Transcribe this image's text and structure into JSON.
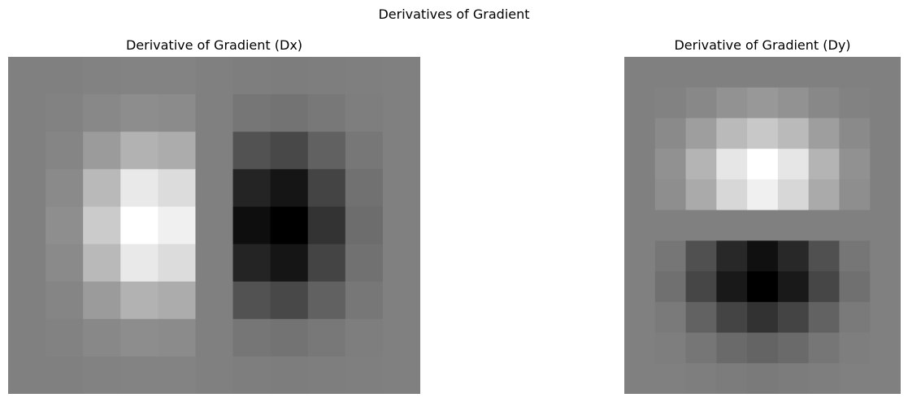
{
  "figure": {
    "title": "Derivatives of Gradient"
  },
  "chart_data": [
    {
      "type": "heatmap",
      "title": "Derivative of Gradient (Dx)",
      "colormap": "gray",
      "axes_visible": false,
      "grid": false,
      "rows": 9,
      "cols": 11,
      "value_range": [
        0,
        255
      ],
      "values": [
        [
          128,
          128,
          130,
          131,
          131,
          128,
          126,
          125,
          126,
          127,
          128
        ],
        [
          128,
          130,
          136,
          141,
          139,
          128,
          118,
          115,
          120,
          126,
          128
        ],
        [
          128,
          133,
          155,
          178,
          172,
          128,
          82,
          72,
          97,
          119,
          128
        ],
        [
          128,
          138,
          185,
          233,
          220,
          128,
          36,
          21,
          68,
          113,
          128
        ],
        [
          128,
          142,
          203,
          255,
          240,
          128,
          14,
          0,
          51,
          109,
          128
        ],
        [
          128,
          138,
          185,
          233,
          220,
          128,
          36,
          21,
          68,
          113,
          128
        ],
        [
          128,
          133,
          155,
          178,
          172,
          128,
          82,
          72,
          97,
          119,
          128
        ],
        [
          128,
          130,
          136,
          141,
          139,
          128,
          118,
          115,
          120,
          126,
          128
        ],
        [
          128,
          128,
          130,
          131,
          131,
          128,
          126,
          125,
          126,
          127,
          128
        ]
      ]
    },
    {
      "type": "heatmap",
      "title": "Derivative of Gradient (Dy)",
      "colormap": "gray",
      "axes_visible": false,
      "grid": false,
      "rows": 11,
      "cols": 9,
      "value_range": [
        0,
        255
      ],
      "values": [
        [
          128,
          128,
          128,
          128,
          128,
          128,
          128,
          128,
          128
        ],
        [
          128,
          130,
          136,
          146,
          152,
          146,
          136,
          130,
          128
        ],
        [
          128,
          138,
          158,
          186,
          200,
          186,
          158,
          138,
          128
        ],
        [
          128,
          145,
          180,
          230,
          255,
          230,
          180,
          145,
          128
        ],
        [
          128,
          142,
          170,
          215,
          240,
          215,
          170,
          142,
          128
        ],
        [
          128,
          128,
          128,
          128,
          128,
          128,
          128,
          128,
          128
        ],
        [
          128,
          118,
          80,
          40,
          16,
          40,
          80,
          118,
          128
        ],
        [
          128,
          112,
          70,
          25,
          0,
          25,
          70,
          112,
          128
        ],
        [
          128,
          122,
          98,
          68,
          50,
          68,
          98,
          122,
          128
        ],
        [
          128,
          126,
          118,
          106,
          100,
          106,
          118,
          126,
          128
        ],
        [
          128,
          128,
          126,
          124,
          122,
          124,
          126,
          128,
          128
        ]
      ]
    }
  ]
}
